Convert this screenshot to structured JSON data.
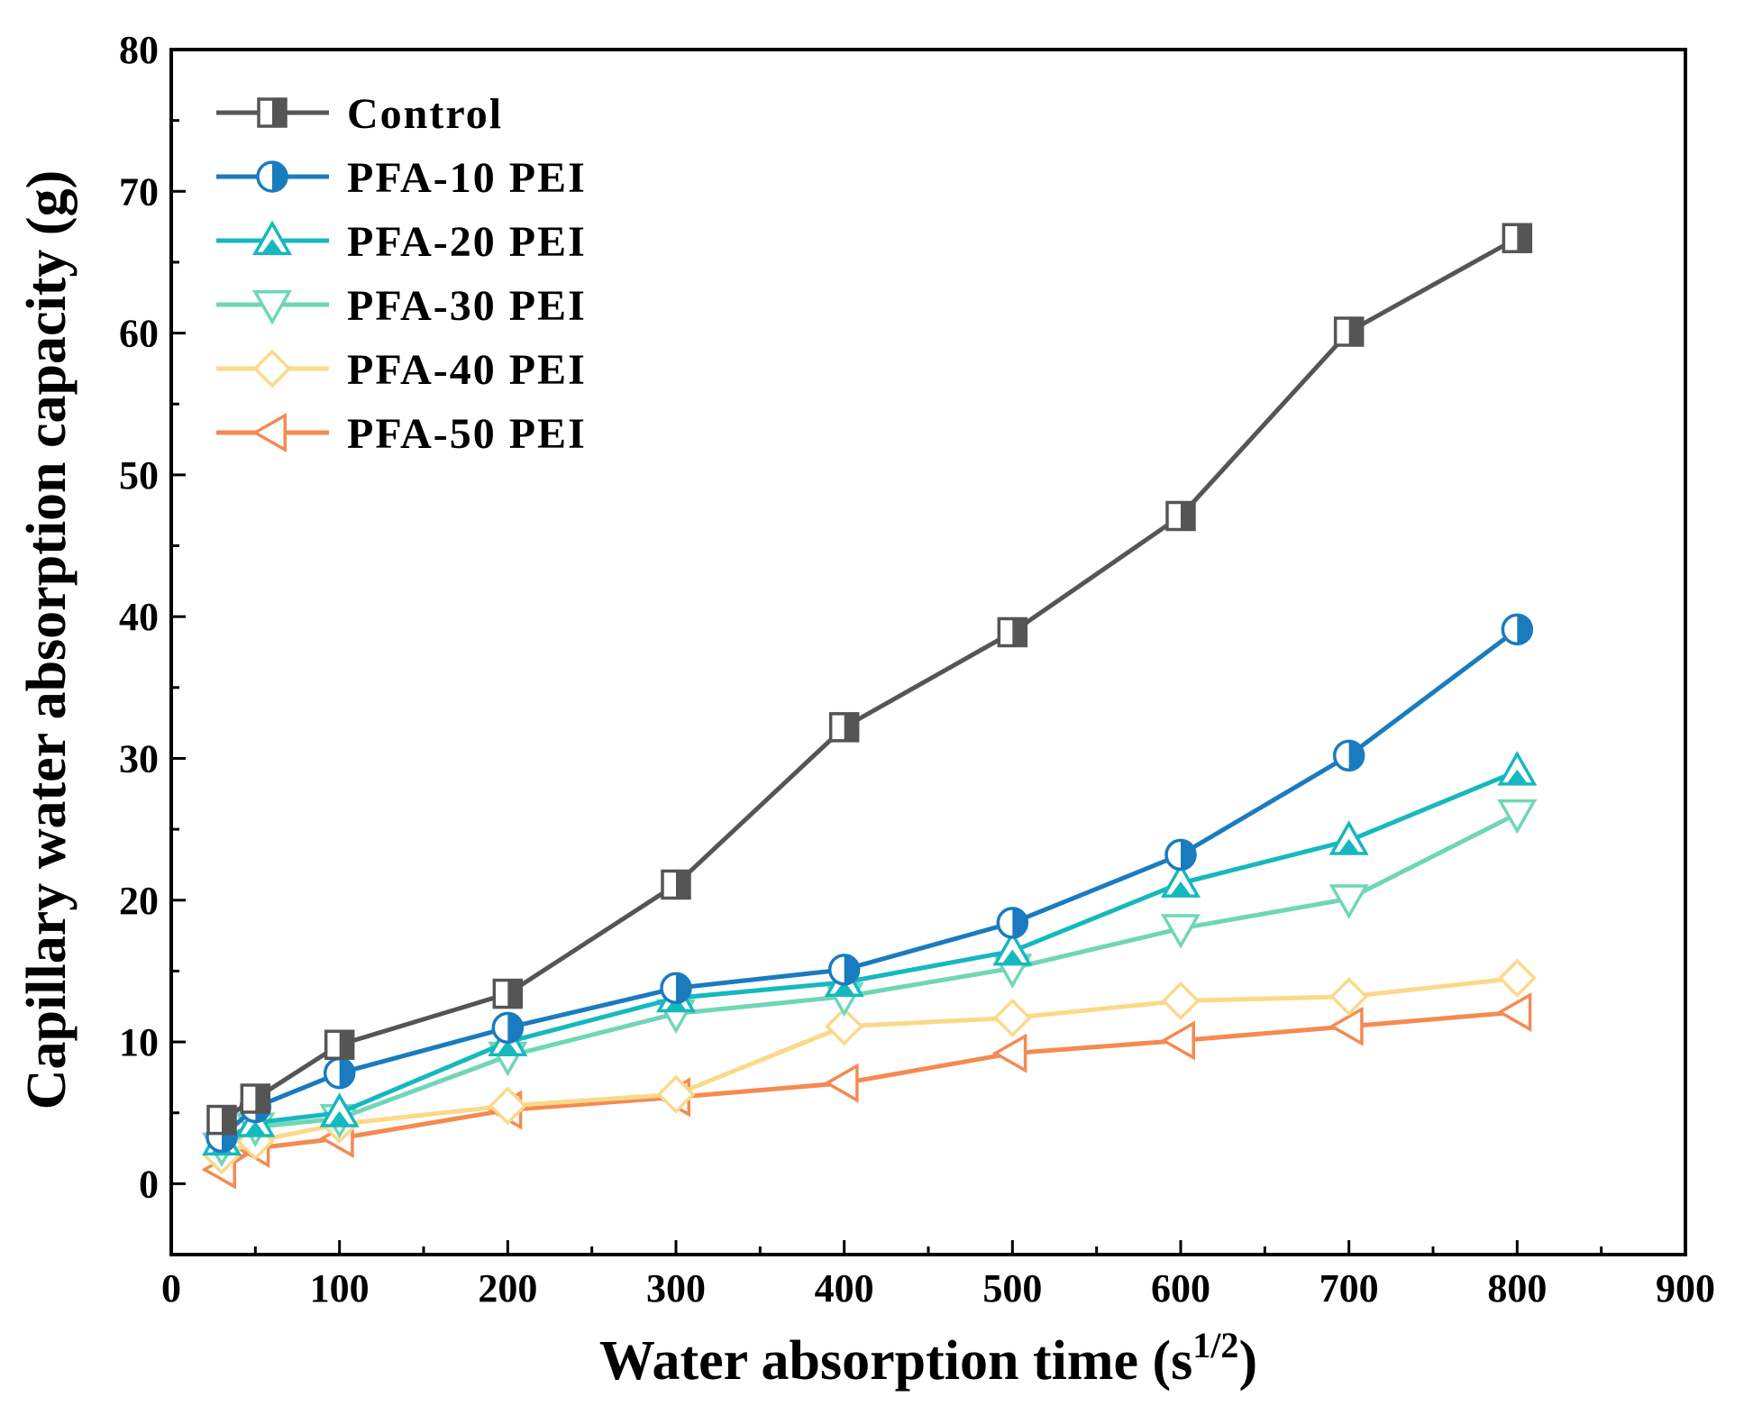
{
  "chart_data": {
    "type": "line",
    "title": "",
    "xlabel": "Water absorption time (s",
    "xlabel_sup": "1/2",
    "xlabel_close": ")",
    "ylabel": "Capillary water absorption capacity (g)",
    "xlim": [
      0,
      900
    ],
    "ylim": [
      -5,
      80
    ],
    "x_ticks": [
      "0",
      "100",
      "200",
      "300",
      "400",
      "500",
      "600",
      "700",
      "800",
      "900"
    ],
    "y_ticks": [
      "0",
      "10",
      "20",
      "30",
      "40",
      "50",
      "60",
      "70",
      "80"
    ],
    "legend_position": "top-left",
    "x": [
      30,
      50,
      100,
      200,
      300,
      400,
      500,
      600,
      700,
      800
    ],
    "series": [
      {
        "name": "Control",
        "color": "#555555",
        "marker": "square-half",
        "values": [
          4.5,
          6.0,
          9.8,
          13.4,
          21.1,
          32.2,
          38.9,
          47.1,
          60.1,
          66.7
        ]
      },
      {
        "name": "PFA-10 PEI",
        "color": "#1a7bbf",
        "marker": "circle-half",
        "values": [
          3.3,
          5.4,
          7.8,
          11.0,
          13.8,
          15.1,
          18.4,
          23.2,
          30.2,
          39.1
        ]
      },
      {
        "name": "PFA-20 PEI",
        "color": "#16b8bf",
        "marker": "triangle-up",
        "values": [
          3.0,
          4.3,
          5.0,
          10.0,
          13.1,
          14.2,
          16.4,
          21.2,
          24.2,
          29.1
        ]
      },
      {
        "name": "PFA-30 PEI",
        "color": "#6fd6b8",
        "marker": "triangle-down",
        "values": [
          2.6,
          4.0,
          4.6,
          9.0,
          12.0,
          13.2,
          15.2,
          18.0,
          20.1,
          26.1
        ]
      },
      {
        "name": "PFA-40 PEI",
        "color": "#fbd98a",
        "marker": "diamond",
        "values": [
          2.0,
          3.0,
          4.2,
          5.5,
          6.3,
          11.1,
          11.7,
          12.9,
          13.2,
          14.5
        ]
      },
      {
        "name": "PFA-50 PEI",
        "color": "#f48a52",
        "marker": "triangle-left",
        "values": [
          1.0,
          2.5,
          3.2,
          5.2,
          6.1,
          7.1,
          9.2,
          10.1,
          11.1,
          12.1
        ]
      }
    ]
  }
}
